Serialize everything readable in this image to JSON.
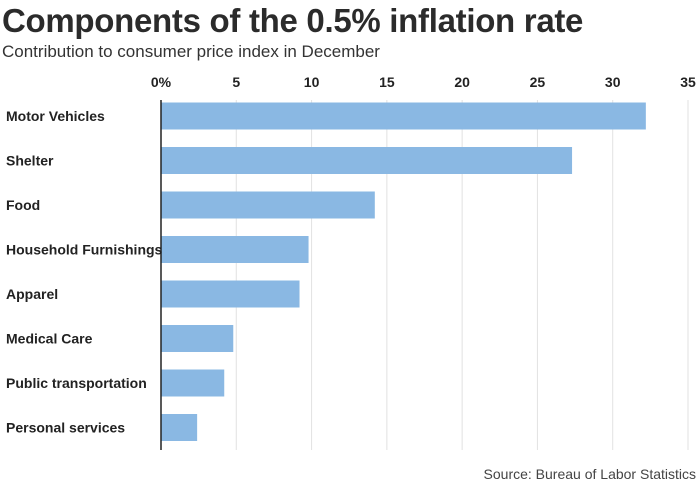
{
  "header": {
    "title": "Components of the 0.5% inflation rate",
    "subtitle": "Contribution to consumer price index in December"
  },
  "footer": {
    "source": "Source: Bureau of Labor Statistics"
  },
  "colors": {
    "bar": "#8ab8e3",
    "grid": "#e2e2e2",
    "axis": "#222222"
  },
  "chart_data": {
    "type": "bar",
    "orientation": "horizontal",
    "categories": [
      "Motor Vehicles",
      "Shelter",
      "Food",
      "Household Furnishings",
      "Apparel",
      "Medical Care",
      "Public transportation",
      "Personal services"
    ],
    "values": [
      32.2,
      27.3,
      14.2,
      9.8,
      9.2,
      4.8,
      4.2,
      2.4
    ],
    "xticks": [
      "0%",
      "5",
      "10",
      "15",
      "20",
      "25",
      "30",
      "35"
    ],
    "xlim": [
      0,
      35
    ],
    "grid": true,
    "axis_position": "top"
  }
}
